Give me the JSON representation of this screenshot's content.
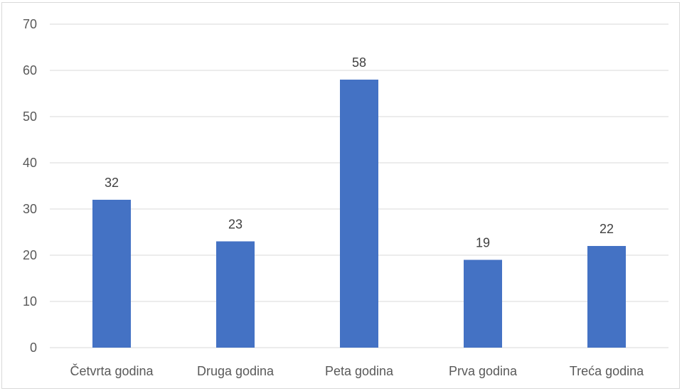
{
  "chart_data": {
    "type": "bar",
    "categories": [
      "Četvrta godina",
      "Druga godina",
      "Peta godina",
      "Prva godina",
      "Treća godina"
    ],
    "values": [
      32,
      23,
      58,
      19,
      22
    ],
    "title": "",
    "xlabel": "",
    "ylabel": "",
    "ylim": [
      0,
      70
    ],
    "yticks": [
      0,
      10,
      20,
      30,
      40,
      50,
      60,
      70
    ],
    "data_labels": true,
    "grid": true,
    "legend": "none",
    "bar_color": "#4472c4",
    "grid_color": "#d9d9d9"
  }
}
